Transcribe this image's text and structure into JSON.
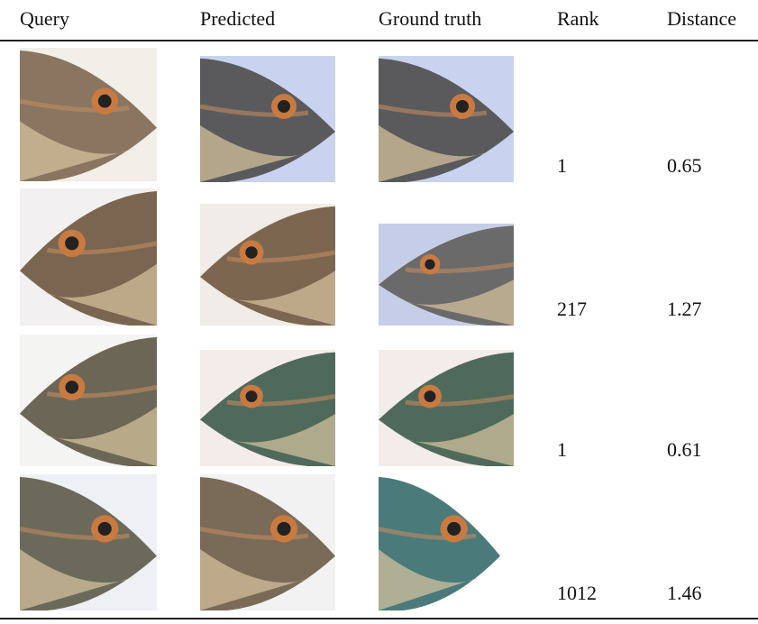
{
  "table": {
    "header": [
      "Query",
      "Predicted",
      "Ground truth",
      "Rank",
      "Distance"
    ],
    "rows": [
      [
        1,
        0.65
      ],
      [
        217,
        1.27
      ],
      [
        1,
        0.61
      ],
      [
        1012,
        1.46
      ]
    ]
  }
}
